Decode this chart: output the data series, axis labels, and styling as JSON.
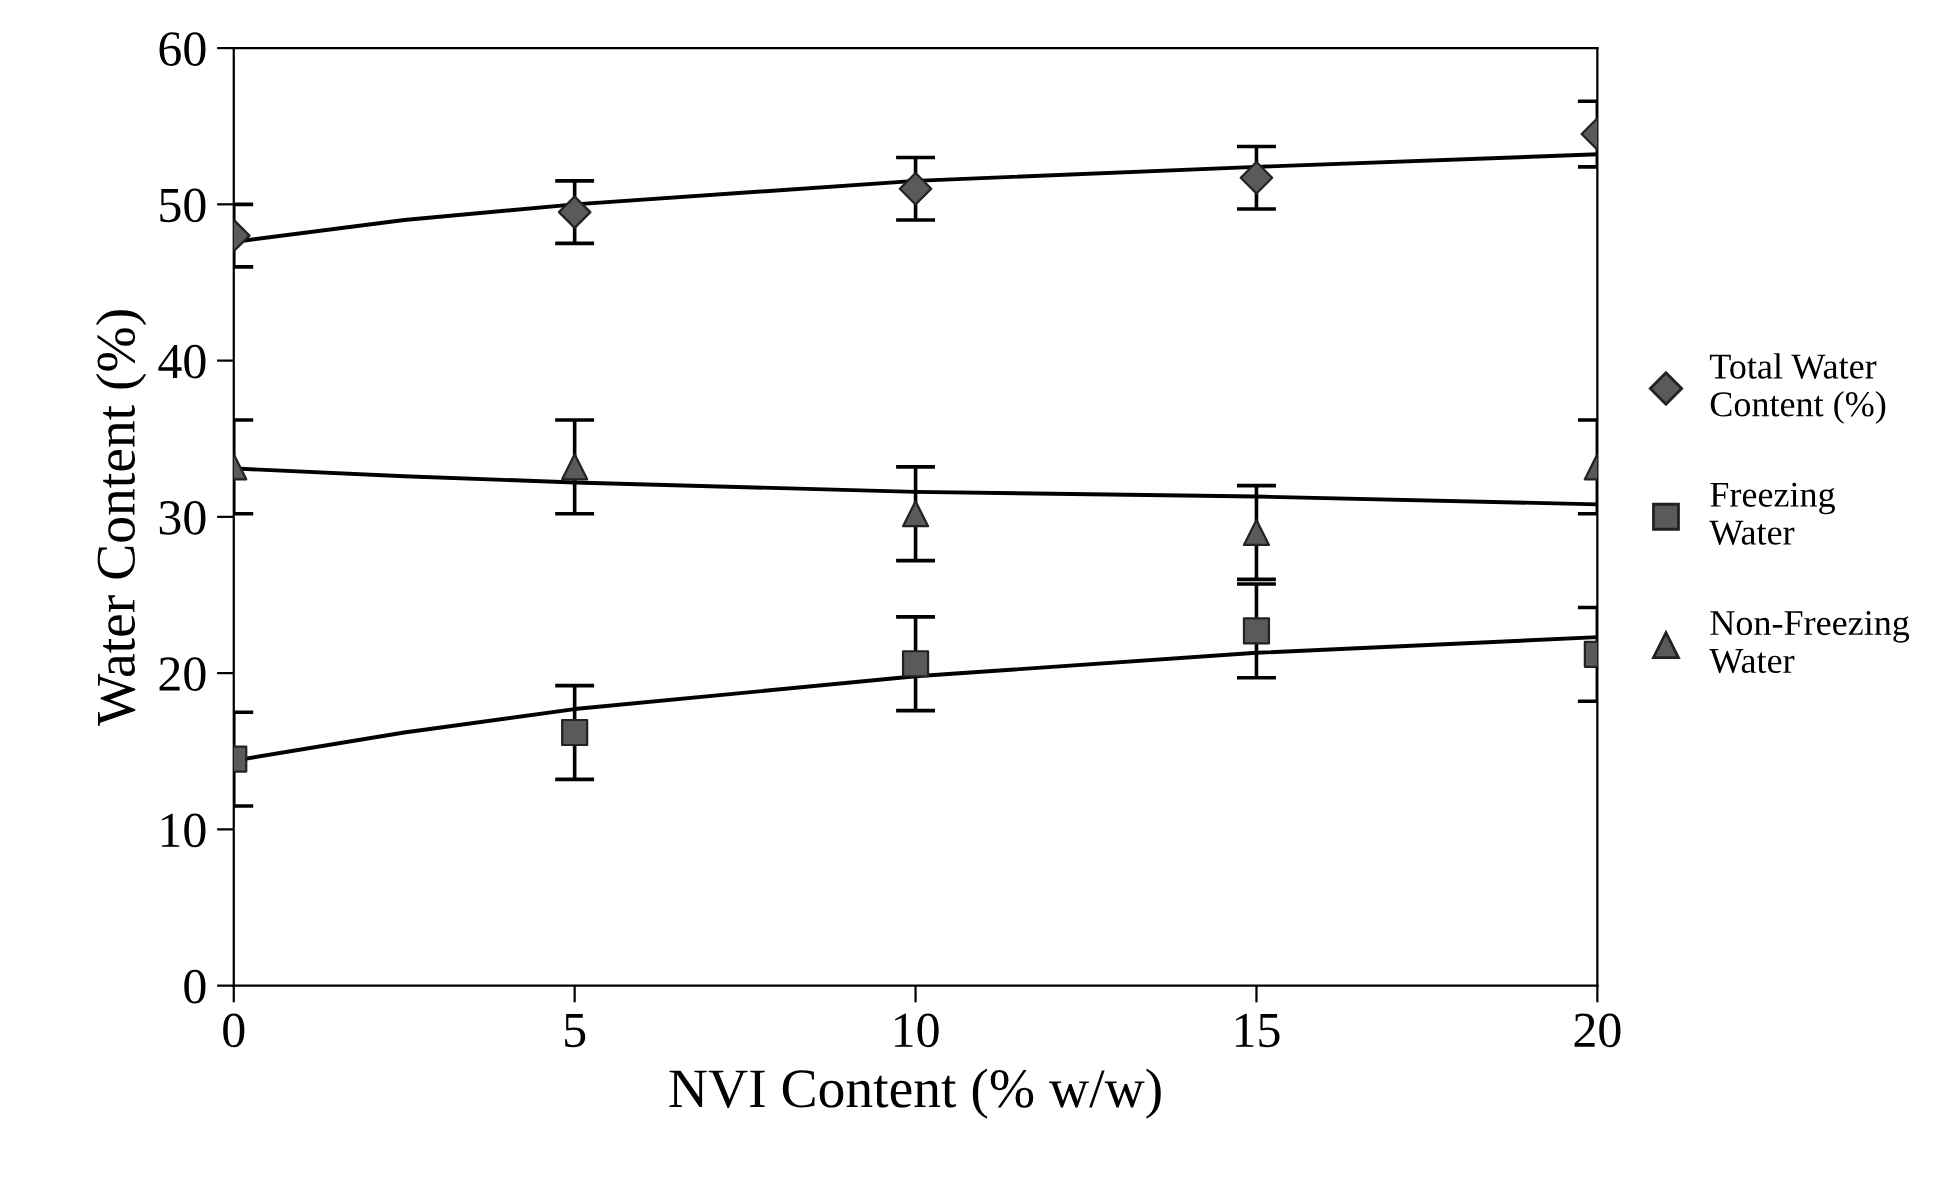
{
  "chart_data": {
    "type": "scatter",
    "xlabel": "NVI Content (% w/w)",
    "ylabel": "Water Content (%)",
    "xlim": [
      0,
      20
    ],
    "ylim": [
      0,
      60
    ],
    "xticks": [
      0,
      5,
      10,
      15,
      20
    ],
    "yticks": [
      0,
      10,
      20,
      30,
      40,
      50,
      60
    ],
    "grid": false,
    "legend": "right",
    "series": [
      {
        "name": "Total Water Content (%)",
        "marker": "diamond",
        "color": "#5a5a5a",
        "x": [
          0,
          5,
          10,
          15,
          20
        ],
        "values": [
          48.0,
          49.5,
          51.0,
          51.7,
          54.5
        ],
        "errors": [
          2.0,
          2.0,
          2.0,
          2.0,
          2.1
        ]
      },
      {
        "name": "Freezing Water",
        "marker": "square",
        "color": "#5a5a5a",
        "x": [
          0,
          5,
          10,
          15,
          20
        ],
        "values": [
          14.5,
          16.2,
          20.6,
          22.7,
          21.2
        ],
        "errors": [
          3,
          3,
          3,
          3,
          3
        ]
      },
      {
        "name": "Non-Freezing Water",
        "marker": "triangle",
        "color": "#5a5a5a",
        "x": [
          0,
          5,
          10,
          15,
          20
        ],
        "values": [
          33.2,
          33.2,
          30.2,
          29.0,
          33.2
        ],
        "errors": [
          3,
          3,
          3,
          3,
          3
        ]
      },
      {
        "type": "line",
        "marker": "none",
        "color": "#000000",
        "x": [
          0,
          2.5,
          5,
          10,
          15,
          20
        ],
        "values": [
          47.6,
          49.0,
          50.0,
          51.5,
          52.4,
          53.2
        ]
      },
      {
        "type": "line",
        "marker": "none",
        "color": "#000000",
        "x": [
          0,
          2.5,
          5,
          10,
          15,
          20
        ],
        "values": [
          14.4,
          16.2,
          17.7,
          19.8,
          21.3,
          22.3
        ]
      },
      {
        "type": "line",
        "marker": "none",
        "color": "#000000",
        "x": [
          0,
          2.5,
          5,
          10,
          15,
          20
        ],
        "values": [
          33.1,
          32.6,
          32.2,
          31.6,
          31.3,
          30.8
        ]
      }
    ]
  }
}
